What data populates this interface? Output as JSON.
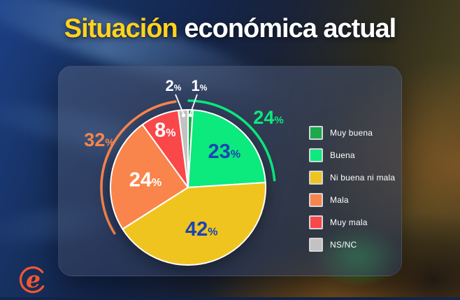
{
  "title": {
    "highlight": "Situación",
    "rest": "económica actual"
  },
  "colors": {
    "title_yellow": "#FFD21E",
    "value_blue": "#1A44B3",
    "white": "#FFFFFF",
    "logo_orange": "#F4572E"
  },
  "logo": {
    "letter": "e"
  },
  "chart_data": {
    "type": "pie",
    "title": "Situación económica actual",
    "start_angle_deg": 0,
    "direction": "clockwise",
    "legend_position": "right",
    "slices": [
      {
        "label": "Muy buena",
        "value": 1,
        "display": "1%",
        "color": "#1BA94C",
        "value_label_placement": "callout"
      },
      {
        "label": "Buena",
        "value": 23,
        "display": "23%",
        "color": "#0CE97D",
        "value_label_placement": "inside"
      },
      {
        "label": "Ni buena ni mala",
        "value": 42,
        "display": "42%",
        "color": "#F0C41F",
        "value_label_placement": "inside"
      },
      {
        "label": "Mala",
        "value": 24,
        "display": "24%",
        "color": "#F9854C",
        "value_label_placement": "inside"
      },
      {
        "label": "Muy mala",
        "value": 8,
        "display": "8%",
        "color": "#F9474A",
        "value_label_placement": "inside"
      },
      {
        "label": "NS/NC",
        "value": 2,
        "display": "2%",
        "color": "#C2C2C2",
        "value_label_placement": "callout"
      }
    ],
    "aggregate_arcs": [
      {
        "label": "24%",
        "value": 24,
        "from_pct": 0,
        "to_pct": 24,
        "color": "#0CE97D"
      },
      {
        "label": "32%",
        "value": 32,
        "from_pct": 66,
        "to_pct": 98,
        "color": "#F9854C"
      }
    ]
  }
}
